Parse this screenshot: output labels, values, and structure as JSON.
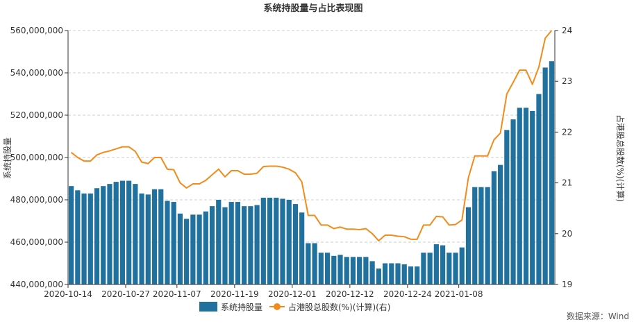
{
  "chart_data": {
    "type": "bar+line",
    "title": "系统持股量与占比表现图",
    "ylabel_left": "系统持股量",
    "ylabel_right": "占港股总股数(%)(计算)",
    "source": "数据来源：Wind",
    "colors": {
      "bar": "#21719f",
      "line": "#f28b1a",
      "grid": "#cccccc",
      "axis": "#333333"
    },
    "ylim_left": [
      440000000,
      560000000
    ],
    "ylim_right": [
      19,
      24
    ],
    "yticks_left": [
      "440,000,000",
      "460,000,000",
      "480,000,000",
      "500,000,000",
      "520,000,000",
      "540,000,000",
      "560,000,000"
    ],
    "yticks_right": [
      "19",
      "20",
      "21",
      "22",
      "23",
      "24"
    ],
    "x_tick_labels": [
      {
        "index": 0,
        "label": "2020-10-14"
      },
      {
        "index": 9,
        "label": "2020-10-27"
      },
      {
        "index": 17,
        "label": "2020-11-07"
      },
      {
        "index": 26,
        "label": "2020-11-19"
      },
      {
        "index": 35,
        "label": "2020-12-01"
      },
      {
        "index": 44,
        "label": "2020-12-12"
      },
      {
        "index": 53,
        "label": "2020-12-24"
      },
      {
        "index": 61,
        "label": "2021-01-08"
      }
    ],
    "grid": true,
    "legend_position": "bottom",
    "series": [
      {
        "name": "系统持股量",
        "type": "bar",
        "values": [
          486500000,
          484500000,
          483000000,
          483000000,
          485500000,
          486500000,
          487500000,
          488500000,
          489000000,
          489000000,
          487500000,
          483000000,
          482500000,
          485000000,
          485000000,
          479500000,
          479000000,
          473500000,
          471000000,
          473000000,
          473000000,
          474500000,
          477000000,
          480000000,
          476500000,
          479000000,
          479000000,
          477000000,
          477000000,
          477500000,
          481000000,
          481000000,
          481000000,
          480500000,
          480000000,
          478000000,
          474000000,
          459500000,
          459500000,
          455000000,
          455000000,
          453500000,
          454000000,
          453000000,
          453000000,
          453000000,
          453000000,
          451000000,
          447500000,
          450000000,
          450000000,
          450000000,
          449500000,
          448500000,
          448500000,
          455000000,
          455000000,
          459000000,
          458500000,
          455000000,
          455000000,
          457500000,
          476500000,
          486000000,
          486000000,
          486000000,
          493500000,
          496500000,
          513000000,
          518000000,
          523500000,
          523500000,
          522000000,
          530000000,
          542500000,
          545500000
        ]
      },
      {
        "name": "占港股总股数(%)(计算)(右)",
        "type": "line",
        "axis": "right",
        "values": [
          21.6,
          21.5,
          21.43,
          21.43,
          21.55,
          21.6,
          21.63,
          21.67,
          21.71,
          21.71,
          21.62,
          21.41,
          21.38,
          21.5,
          21.5,
          21.27,
          21.26,
          21.0,
          20.9,
          20.98,
          20.98,
          21.05,
          21.16,
          21.27,
          21.12,
          21.24,
          21.24,
          21.17,
          21.17,
          21.19,
          21.32,
          21.33,
          21.33,
          21.31,
          21.27,
          21.2,
          21.02,
          20.36,
          20.36,
          20.17,
          20.17,
          20.1,
          20.13,
          20.09,
          20.09,
          20.08,
          20.1,
          20.0,
          19.86,
          19.97,
          19.97,
          19.95,
          19.94,
          19.89,
          19.89,
          20.17,
          20.17,
          20.34,
          20.33,
          20.17,
          20.18,
          20.27,
          21.1,
          21.53,
          21.53,
          21.53,
          21.85,
          21.98,
          22.75,
          22.98,
          23.22,
          23.22,
          22.94,
          23.28,
          23.85,
          24.0
        ]
      }
    ]
  }
}
